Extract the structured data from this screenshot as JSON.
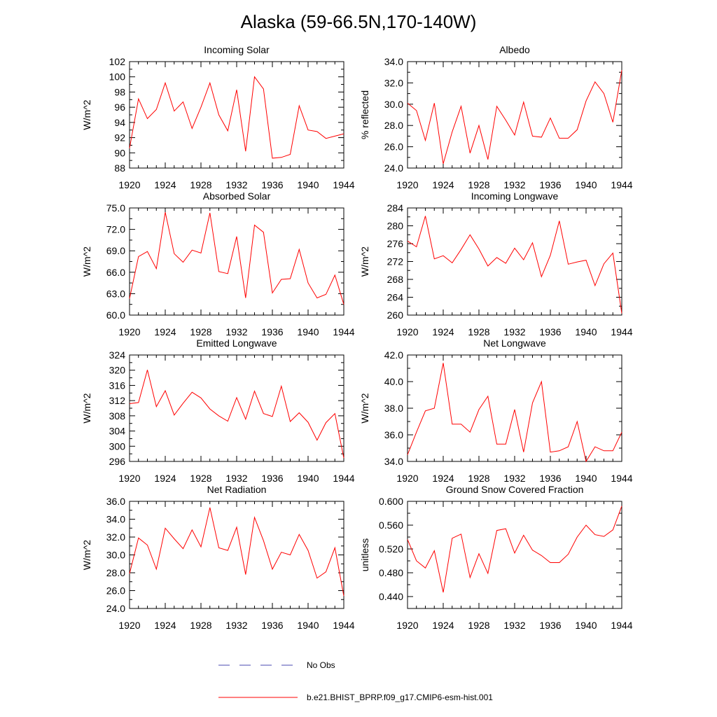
{
  "title": "Alaska (59-66.5N,170-140W)",
  "colors": {
    "model": "#ff0000",
    "obs": "#4a4ab0",
    "axis": "#000000"
  },
  "legend": {
    "obs_label": "No Obs",
    "model_label": "b.e21.BHIST_BPRP.f09_g17.CMIP6-esm-hist.001"
  },
  "chart_data": [
    {
      "type": "line",
      "title": "Incoming Solar",
      "xlabel": "",
      "ylabel": "W/m^2",
      "xlim": [
        1920,
        1944
      ],
      "ylim": [
        88,
        102
      ],
      "xticks": [
        "1920",
        "1924",
        "1928",
        "1932",
        "1936",
        "1940",
        "1944"
      ],
      "yticks": [
        "88",
        "90",
        "92",
        "94",
        "96",
        "98",
        "100",
        "102"
      ],
      "x": [
        1920,
        1921,
        1922,
        1923,
        1924,
        1925,
        1926,
        1927,
        1928,
        1929,
        1930,
        1931,
        1932,
        1933,
        1934,
        1935,
        1936,
        1937,
        1938,
        1939,
        1940,
        1941,
        1942,
        1943,
        1944
      ],
      "series": [
        {
          "name": "b.e21.BHIST_BPRP.f09_g17.CMIP6-esm-hist.001",
          "values": [
            90.6,
            97.1,
            94.5,
            95.7,
            99.2,
            95.5,
            96.7,
            93.2,
            96.0,
            99.2,
            95.0,
            92.9,
            98.3,
            90.2,
            100.0,
            98.4,
            89.3,
            89.4,
            89.8,
            96.2,
            93.0,
            92.8,
            91.9,
            92.2,
            92.5
          ]
        }
      ]
    },
    {
      "type": "line",
      "title": "Albedo",
      "xlabel": "",
      "ylabel": "% reflected",
      "xlim": [
        1920,
        1944
      ],
      "ylim": [
        24,
        34
      ],
      "xticks": [
        "1920",
        "1924",
        "1928",
        "1932",
        "1936",
        "1940",
        "1944"
      ],
      "yticks": [
        "24.0",
        "26.0",
        "28.0",
        "30.0",
        "32.0",
        "34.0"
      ],
      "x": [
        1920,
        1921,
        1922,
        1923,
        1924,
        1925,
        1926,
        1927,
        1928,
        1929,
        1930,
        1931,
        1932,
        1933,
        1934,
        1935,
        1936,
        1937,
        1938,
        1939,
        1940,
        1941,
        1942,
        1943,
        1944
      ],
      "series": [
        {
          "name": "b.e21.BHIST_BPRP.f09_g17.CMIP6-esm-hist.001",
          "values": [
            30.1,
            29.4,
            26.6,
            30.1,
            24.4,
            27.4,
            29.8,
            25.4,
            28.0,
            24.8,
            29.8,
            28.5,
            27.1,
            30.2,
            27.0,
            26.9,
            28.7,
            26.8,
            26.8,
            27.6,
            30.3,
            32.1,
            31.0,
            28.3,
            33.2
          ]
        }
      ]
    },
    {
      "type": "line",
      "title": "Absorbed Solar",
      "xlabel": "",
      "ylabel": "W/m^2",
      "xlim": [
        1920,
        1944
      ],
      "ylim": [
        60,
        75
      ],
      "xticks": [
        "1920",
        "1924",
        "1928",
        "1932",
        "1936",
        "1940",
        "1944"
      ],
      "yticks": [
        "60.0",
        "63.0",
        "66.0",
        "69.0",
        "72.0",
        "75.0"
      ],
      "x": [
        1920,
        1921,
        1922,
        1923,
        1924,
        1925,
        1926,
        1927,
        1928,
        1929,
        1930,
        1931,
        1932,
        1933,
        1934,
        1935,
        1936,
        1937,
        1938,
        1939,
        1940,
        1941,
        1942,
        1943,
        1944
      ],
      "series": [
        {
          "name": "b.e21.BHIST_BPRP.f09_g17.CMIP6-esm-hist.001",
          "values": [
            62.3,
            68.2,
            68.9,
            66.5,
            74.4,
            68.6,
            67.4,
            69.1,
            68.7,
            74.3,
            66.1,
            65.8,
            71.0,
            62.4,
            72.6,
            71.6,
            63.1,
            65.0,
            65.1,
            69.2,
            64.5,
            62.4,
            62.9,
            65.6,
            61.5
          ]
        }
      ]
    },
    {
      "type": "line",
      "title": "Incoming Longwave",
      "xlabel": "",
      "ylabel": "W/m^2",
      "xlim": [
        1920,
        1944
      ],
      "ylim": [
        260,
        284
      ],
      "xticks": [
        "1920",
        "1924",
        "1928",
        "1932",
        "1936",
        "1940",
        "1944"
      ],
      "yticks": [
        "260",
        "264",
        "268",
        "272",
        "276",
        "280",
        "284"
      ],
      "x": [
        1920,
        1921,
        1922,
        1923,
        1924,
        1925,
        1926,
        1927,
        1928,
        1929,
        1930,
        1931,
        1932,
        1933,
        1934,
        1935,
        1936,
        1937,
        1938,
        1939,
        1940,
        1941,
        1942,
        1943,
        1944
      ],
      "series": [
        {
          "name": "b.e21.BHIST_BPRP.f09_g17.CMIP6-esm-hist.001",
          "values": [
            276.6,
            275.3,
            282.2,
            272.6,
            273.3,
            271.7,
            274.7,
            278.0,
            274.8,
            271.0,
            272.9,
            271.6,
            275.0,
            272.4,
            276.2,
            268.6,
            273.4,
            281.1,
            271.4,
            271.9,
            272.3,
            266.6,
            271.5,
            273.9,
            260.4
          ]
        }
      ]
    },
    {
      "type": "line",
      "title": "Emitted Longwave",
      "xlabel": "",
      "ylabel": "W/m^2",
      "xlim": [
        1920,
        1944
      ],
      "ylim": [
        296,
        324
      ],
      "xticks": [
        "1920",
        "1924",
        "1928",
        "1932",
        "1936",
        "1940",
        "1944"
      ],
      "yticks": [
        "296",
        "300",
        "304",
        "308",
        "312",
        "316",
        "320",
        "324"
      ],
      "x": [
        1920,
        1921,
        1922,
        1923,
        1924,
        1925,
        1926,
        1927,
        1928,
        1929,
        1930,
        1931,
        1932,
        1933,
        1934,
        1935,
        1936,
        1937,
        1938,
        1939,
        1940,
        1941,
        1942,
        1943,
        1944
      ],
      "series": [
        {
          "name": "b.e21.BHIST_BPRP.f09_g17.CMIP6-esm-hist.001",
          "values": [
            311.2,
            311.5,
            320.1,
            310.4,
            314.6,
            308.2,
            311.3,
            314.2,
            312.7,
            309.8,
            308.0,
            306.6,
            312.8,
            307.1,
            314.5,
            308.6,
            307.8,
            315.8,
            306.5,
            308.8,
            306.3,
            301.6,
            306.2,
            308.6,
            296.9
          ]
        }
      ]
    },
    {
      "type": "line",
      "title": "Net Longwave",
      "xlabel": "",
      "ylabel": "W/m^2",
      "xlim": [
        1920,
        1944
      ],
      "ylim": [
        34,
        42
      ],
      "xticks": [
        "1920",
        "1924",
        "1928",
        "1932",
        "1936",
        "1940",
        "1944"
      ],
      "yticks": [
        "34.0",
        "36.0",
        "38.0",
        "40.0",
        "42.0"
      ],
      "x": [
        1920,
        1921,
        1922,
        1923,
        1924,
        1925,
        1926,
        1927,
        1928,
        1929,
        1930,
        1931,
        1932,
        1933,
        1934,
        1935,
        1936,
        1937,
        1938,
        1939,
        1940,
        1941,
        1942,
        1943,
        1944
      ],
      "series": [
        {
          "name": "b.e21.BHIST_BPRP.f09_g17.CMIP6-esm-hist.001",
          "values": [
            34.5,
            36.2,
            37.8,
            38.0,
            41.4,
            36.8,
            36.8,
            36.2,
            37.9,
            38.9,
            35.3,
            35.3,
            37.9,
            34.7,
            38.4,
            40.0,
            34.7,
            34.8,
            35.1,
            37.0,
            34.0,
            35.1,
            34.8,
            34.8,
            36.2
          ]
        }
      ]
    },
    {
      "type": "line",
      "title": "Net Radiation",
      "xlabel": "",
      "ylabel": "W/m^2",
      "xlim": [
        1920,
        1944
      ],
      "ylim": [
        24,
        36
      ],
      "xticks": [
        "1920",
        "1924",
        "1928",
        "1932",
        "1936",
        "1940",
        "1944"
      ],
      "yticks": [
        "24.0",
        "26.0",
        "28.0",
        "30.0",
        "32.0",
        "34.0",
        "36.0"
      ],
      "x": [
        1920,
        1921,
        1922,
        1923,
        1924,
        1925,
        1926,
        1927,
        1928,
        1929,
        1930,
        1931,
        1932,
        1933,
        1934,
        1935,
        1936,
        1937,
        1938,
        1939,
        1940,
        1941,
        1942,
        1943,
        1944
      ],
      "series": [
        {
          "name": "b.e21.BHIST_BPRP.f09_g17.CMIP6-esm-hist.001",
          "values": [
            27.9,
            31.9,
            31.1,
            28.4,
            33.0,
            31.8,
            30.7,
            32.8,
            30.9,
            35.3,
            30.8,
            30.5,
            33.1,
            27.8,
            34.2,
            31.6,
            28.4,
            30.3,
            30.0,
            32.3,
            30.5,
            27.4,
            28.1,
            30.8,
            25.4
          ]
        }
      ]
    },
    {
      "type": "line",
      "title": "Ground Snow Covered Fraction",
      "xlabel": "",
      "ylabel": "unitless",
      "xlim": [
        1920,
        1944
      ],
      "ylim": [
        0.42,
        0.6
      ],
      "xticks": [
        "1920",
        "1924",
        "1928",
        "1932",
        "1936",
        "1940",
        "1944"
      ],
      "yticks": [
        "0.440",
        "0.480",
        "0.520",
        "0.560",
        "0.600"
      ],
      "yticks_at": [
        0.44,
        0.48,
        0.52,
        0.56,
        0.6
      ],
      "x": [
        1920,
        1921,
        1922,
        1923,
        1924,
        1925,
        1926,
        1927,
        1928,
        1929,
        1930,
        1931,
        1932,
        1933,
        1934,
        1935,
        1936,
        1937,
        1938,
        1939,
        1940,
        1941,
        1942,
        1943,
        1944
      ],
      "series": [
        {
          "name": "b.e21.BHIST_BPRP.f09_g17.CMIP6-esm-hist.001",
          "values": [
            0.536,
            0.5,
            0.488,
            0.517,
            0.447,
            0.538,
            0.545,
            0.472,
            0.512,
            0.479,
            0.551,
            0.554,
            0.513,
            0.543,
            0.518,
            0.509,
            0.497,
            0.497,
            0.511,
            0.54,
            0.56,
            0.544,
            0.541,
            0.552,
            0.592
          ]
        }
      ]
    }
  ]
}
